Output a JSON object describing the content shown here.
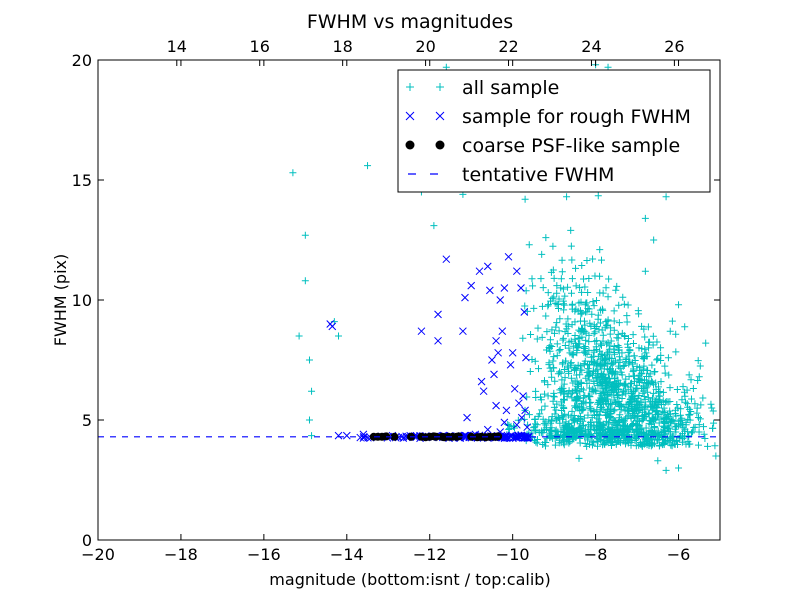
{
  "chart_data": {
    "type": "scatter",
    "title": "FWHM vs magnitudes",
    "xlabel": "magnitude (bottom:isnt / top:calib)",
    "ylabel": "FWHM (pix)",
    "xlim": [
      -20,
      -5
    ],
    "ylim": [
      0,
      20
    ],
    "xticks": [
      -20,
      -18,
      -16,
      -14,
      -12,
      -10,
      -8,
      -6
    ],
    "xtick_labels": [
      "−20",
      "−18",
      "−16",
      "−14",
      "−12",
      "−10",
      "−8",
      "−6"
    ],
    "yticks": [
      0,
      5,
      10,
      15,
      20
    ],
    "ytick_labels": [
      "0",
      "5",
      "10",
      "15",
      "20"
    ],
    "top_axis": {
      "label": "calib",
      "offset": 32.1,
      "ticks": [
        14,
        16,
        18,
        20,
        22,
        24,
        26
      ],
      "tick_labels": [
        "14",
        "16",
        "18",
        "20",
        "22",
        "24",
        "26"
      ]
    },
    "legend_position": "top-right",
    "tentative_fwhm": 4.3,
    "colors": {
      "all": "#00bfbf",
      "rough": "#0000ff",
      "psf": "#000000",
      "line": "#0000ff"
    },
    "series": [
      {
        "name": "all sample",
        "marker": "plus",
        "color": "#00bfbf",
        "points": [
          [
            -15.3,
            15.3
          ],
          [
            -15.0,
            12.7
          ],
          [
            -15.0,
            10.8
          ],
          [
            -15.15,
            8.5
          ],
          [
            -14.9,
            7.5
          ],
          [
            -14.85,
            6.2
          ],
          [
            -14.9,
            5.0
          ],
          [
            -14.85,
            4.35
          ],
          [
            -14.3,
            9.1
          ],
          [
            -14.2,
            8.5
          ],
          [
            -13.5,
            15.6
          ],
          [
            -12.5,
            17.8
          ],
          [
            -12.2,
            14.5
          ],
          [
            -12.0,
            17.5
          ],
          [
            -11.9,
            13.1
          ],
          [
            -11.6,
            19.7
          ],
          [
            -11.2,
            14.4
          ],
          [
            -10.5,
            16.8
          ],
          [
            -9.7,
            14.2
          ],
          [
            -9.1,
            17.2
          ],
          [
            -8.7,
            14.3
          ],
          [
            -8.5,
            16.1
          ],
          [
            -8.0,
            19.8
          ],
          [
            -7.7,
            19.7
          ],
          [
            -7.5,
            15.0
          ],
          [
            -7.2,
            14.9
          ],
          [
            -6.8,
            13.4
          ],
          [
            -6.3,
            14.3
          ],
          [
            -6.0,
            9.8
          ],
          [
            -6.2,
            8.7
          ],
          [
            -5.5,
            6.8
          ],
          [
            -5.2,
            5.5
          ],
          [
            -5.1,
            3.5
          ],
          [
            -5.3,
            3.9
          ],
          [
            -5.6,
            4.7
          ],
          [
            -6.8,
            11.2
          ],
          [
            -6.6,
            12.5
          ],
          [
            -9.6,
            12.3
          ],
          [
            -9.3,
            11.9
          ],
          [
            -9.0,
            10.9
          ],
          [
            -6.3,
            2.9
          ],
          [
            -8.4,
            3.4
          ],
          [
            -6.0,
            3.0
          ],
          [
            -6.5,
            3.3
          ],
          [
            -9.2,
            12.6
          ],
          [
            -8.6,
            12.9
          ],
          [
            -7.9,
            12.1
          ]
        ],
        "cloud": [
          {
            "cx": -7.6,
            "cy": 6.2,
            "sx": 0.75,
            "sy": 1.5,
            "n": 700
          },
          {
            "cx": -6.6,
            "cy": 4.9,
            "sx": 0.65,
            "sy": 0.75,
            "n": 320
          },
          {
            "cx": -8.4,
            "cy": 8.9,
            "sx": 0.55,
            "sy": 1.7,
            "n": 220
          },
          {
            "cx": -9.0,
            "cy": 5.0,
            "sx": 0.45,
            "sy": 0.8,
            "n": 90
          },
          {
            "cx": -8.2,
            "cy": 4.45,
            "sx": 0.9,
            "sy": 0.2,
            "n": 200
          }
        ]
      },
      {
        "name": "sample for rough FWHM",
        "marker": "x",
        "color": "#0000ff",
        "points": [
          [
            -14.4,
            9.0
          ],
          [
            -14.35,
            8.9
          ],
          [
            -12.2,
            8.7
          ],
          [
            -11.8,
            8.3
          ],
          [
            -11.8,
            9.4
          ],
          [
            -11.6,
            11.7
          ],
          [
            -11.2,
            8.7
          ],
          [
            -11.15,
            10.1
          ],
          [
            -11.1,
            5.1
          ],
          [
            -11.0,
            10.6
          ],
          [
            -10.8,
            11.2
          ],
          [
            -10.75,
            6.6
          ],
          [
            -10.7,
            6.2
          ],
          [
            -10.6,
            11.4
          ],
          [
            -10.55,
            10.4
          ],
          [
            -10.5,
            7.5
          ],
          [
            -10.45,
            6.9
          ],
          [
            -10.4,
            8.3
          ],
          [
            -10.35,
            7.8
          ],
          [
            -10.3,
            10.0
          ],
          [
            -10.25,
            8.7
          ],
          [
            -10.2,
            10.5
          ],
          [
            -10.15,
            5.4
          ],
          [
            -10.1,
            11.8
          ],
          [
            -10.05,
            7.3
          ],
          [
            -10.0,
            7.8
          ],
          [
            -9.95,
            6.3
          ],
          [
            -9.9,
            11.2
          ],
          [
            -9.85,
            5.7
          ],
          [
            -9.8,
            10.5
          ],
          [
            -9.78,
            5.1
          ],
          [
            -9.75,
            6.0
          ],
          [
            -9.72,
            9.5
          ],
          [
            -9.7,
            5.4
          ],
          [
            -9.68,
            7.6
          ],
          [
            -9.65,
            4.7
          ],
          [
            -10.2,
            4.9
          ],
          [
            -10.3,
            4.5
          ],
          [
            -10.6,
            4.6
          ],
          [
            -9.9,
            4.8
          ],
          [
            -10.4,
            5.6
          ],
          [
            -10.9,
            4.4
          ],
          [
            -12.9,
            4.35
          ],
          [
            -13.6,
            4.4
          ],
          [
            -14.0,
            4.35
          ],
          [
            -14.2,
            4.35
          ]
        ],
        "band": {
          "x0": -14.3,
          "x1": -9.6,
          "y": 4.3,
          "jitter": 0.06,
          "n": 140
        }
      },
      {
        "name": "coarse PSF-like sample",
        "marker": "circle",
        "color": "#000000",
        "points": [
          [
            -13.35,
            4.3
          ],
          [
            -13.25,
            4.3
          ],
          [
            -13.15,
            4.3
          ],
          [
            -13.05,
            4.32
          ],
          [
            -12.85,
            4.3
          ],
          [
            -12.45,
            4.3
          ],
          [
            -12.2,
            4.3
          ],
          [
            -12.1,
            4.28
          ],
          [
            -12.0,
            4.3
          ],
          [
            -11.9,
            4.32
          ],
          [
            -11.85,
            4.3
          ],
          [
            -11.7,
            4.3
          ],
          [
            -11.65,
            4.28
          ],
          [
            -11.55,
            4.3
          ],
          [
            -11.45,
            4.3
          ],
          [
            -11.35,
            4.3
          ],
          [
            -11.3,
            4.32
          ],
          [
            -11.0,
            4.3
          ],
          [
            -10.85,
            4.28
          ],
          [
            -10.75,
            4.3
          ],
          [
            -10.65,
            4.28
          ],
          [
            -10.55,
            4.3
          ],
          [
            -10.45,
            4.3
          ],
          [
            -10.4,
            4.3
          ],
          [
            -10.35,
            4.32
          ]
        ]
      },
      {
        "name": "tentative FWHM",
        "marker": "dashed-line",
        "color": "#0000ff",
        "y": 4.3
      }
    ]
  }
}
